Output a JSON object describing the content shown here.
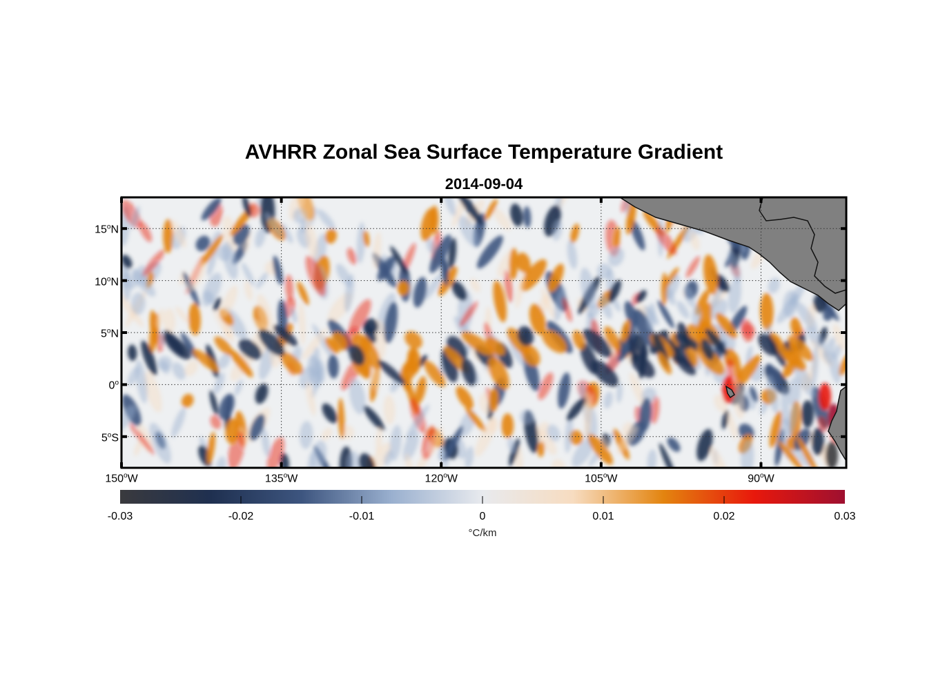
{
  "title": "AVHRR Zonal Sea Surface Temperature Gradient",
  "subtitle": "2014-09-04",
  "map": {
    "region": "Eastern Equatorial Pacific",
    "lon_range": [
      -150,
      -82
    ],
    "lat_range": [
      -8,
      18
    ],
    "grid_lines": "dotted",
    "land_color": "#808080",
    "lat_ticks": [
      {
        "value": 15,
        "deg": "15",
        "hemi": "N"
      },
      {
        "value": 10,
        "deg": "10",
        "hemi": "N"
      },
      {
        "value": 5,
        "deg": "5",
        "hemi": "N"
      },
      {
        "value": 0,
        "deg": "0",
        "hemi": ""
      },
      {
        "value": -5,
        "deg": "5",
        "hemi": "S"
      }
    ],
    "lon_ticks": [
      {
        "value": -150,
        "deg": "150",
        "hemi": "W"
      },
      {
        "value": -135,
        "deg": "135",
        "hemi": "W"
      },
      {
        "value": -120,
        "deg": "120",
        "hemi": "W"
      },
      {
        "value": -105,
        "deg": "105",
        "hemi": "W"
      },
      {
        "value": -90,
        "deg": "90",
        "hemi": "W"
      }
    ]
  },
  "colorbar": {
    "min": -0.03,
    "max": 0.03,
    "ticks": [
      "-0.03",
      "-0.02",
      "-0.01",
      "0",
      "0.01",
      "0.02",
      "0.03"
    ],
    "unit": "°C/km",
    "colors": [
      "#3a3a3e",
      "#1f3050",
      "#3d557f",
      "#9ab0cf",
      "#e8eaee",
      "#f7dcc0",
      "#e3840f",
      "#e8180c",
      "#9e1030"
    ]
  }
}
